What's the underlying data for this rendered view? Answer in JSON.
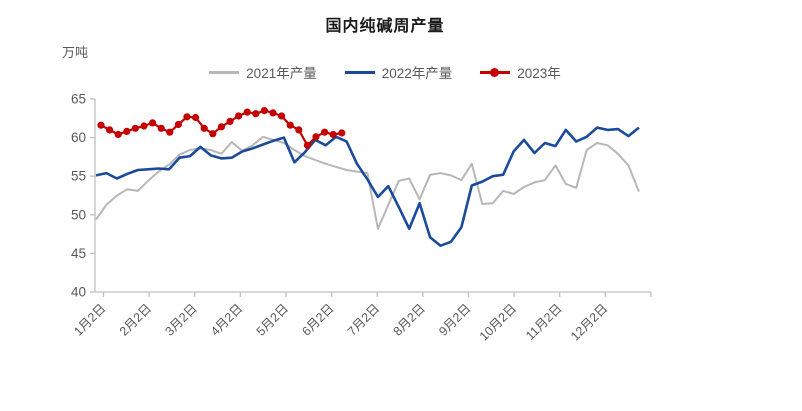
{
  "title": "国内纯碱周产量",
  "unit_label": "万吨",
  "legend": [
    {
      "label": "2021年产量"
    },
    {
      "label": "2022年产量"
    },
    {
      "label": "2023年"
    }
  ],
  "chart_data": {
    "type": "line",
    "title": "国内纯碱周产量",
    "ylabel": "万吨",
    "ylim": [
      40,
      65
    ],
    "yticks": [
      40,
      45,
      50,
      55,
      60,
      65
    ],
    "x_tick_labels": [
      "1月2日",
      "2月2日",
      "3月2日",
      "4月2日",
      "5月2日",
      "6月2日",
      "7月2日",
      "8月2日",
      "9月2日",
      "10月2日",
      "11月2日",
      "12月2日"
    ],
    "x_unit": "week",
    "grid": false,
    "legend_position": "top",
    "series": [
      {
        "name": "2021年产量",
        "color": "#b7b7b7",
        "marker": "none",
        "values": [
          49.4,
          51.3,
          52.5,
          53.3,
          53.1,
          54.4,
          55.6,
          56.5,
          57.8,
          58.4,
          58.6,
          58.4,
          57.9,
          59.4,
          58.3,
          59.0,
          60.1,
          59.7,
          59.3,
          58.4,
          57.6,
          57.1,
          56.6,
          56.2,
          55.8,
          55.6,
          55.4,
          48.2,
          51.3,
          54.4,
          54.7,
          52.0,
          55.2,
          55.4,
          55.1,
          54.5,
          56.6,
          51.4,
          51.5,
          53.1,
          52.7,
          53.6,
          54.2,
          54.5,
          56.4,
          54.0,
          53.5,
          58.4,
          59.3,
          59.0,
          57.9,
          56.4,
          53.0
        ]
      },
      {
        "name": "2022年产量",
        "color": "#1b4a9c",
        "marker": "none",
        "values": [
          55.1,
          55.4,
          54.7,
          55.3,
          55.8,
          55.9,
          56.0,
          55.9,
          57.4,
          57.6,
          58.8,
          57.7,
          57.3,
          57.4,
          58.2,
          58.6,
          59.1,
          59.6,
          60.0,
          56.8,
          58.1,
          59.7,
          59.0,
          60.1,
          59.5,
          56.6,
          54.6,
          52.3,
          53.7,
          51.0,
          48.2,
          51.5,
          47.1,
          46.0,
          46.5,
          48.4,
          53.8,
          54.3,
          55.0,
          55.2,
          58.2,
          59.7,
          58.0,
          59.3,
          58.9,
          61.0,
          59.5,
          60.1,
          61.3,
          61.0,
          61.1,
          60.2,
          61.3
        ]
      },
      {
        "name": "2023年",
        "color": "#c40000",
        "marker": "circle",
        "values": [
          61.6,
          61.0,
          60.4,
          60.8,
          61.2,
          61.5,
          61.9,
          61.2,
          60.7,
          61.7,
          62.7,
          62.6,
          61.2,
          60.5,
          61.4,
          62.1,
          62.8,
          63.3,
          63.1,
          63.5,
          63.2,
          62.8,
          61.6,
          61.0,
          59.0,
          60.1,
          60.7,
          60.4,
          60.6
        ]
      }
    ]
  }
}
